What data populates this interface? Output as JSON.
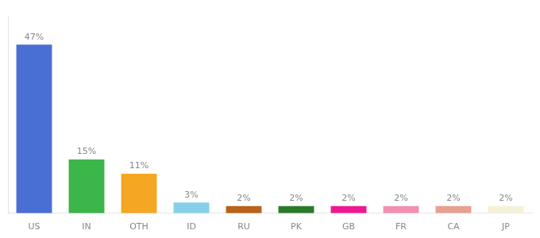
{
  "chart_data": {
    "type": "bar",
    "categories": [
      "US",
      "IN",
      "OTH",
      "ID",
      "RU",
      "PK",
      "GB",
      "FR",
      "CA",
      "JP"
    ],
    "values": [
      47,
      15,
      11,
      3,
      2,
      2,
      2,
      2,
      2,
      2
    ],
    "value_labels": [
      "47%",
      "15%",
      "11%",
      "3%",
      "2%",
      "2%",
      "2%",
      "2%",
      "2%",
      "2%"
    ],
    "colors": [
      "#4a6fd4",
      "#3cb54a",
      "#f5a623",
      "#87ceeb",
      "#b8621a",
      "#2a7a2a",
      "#f01890",
      "#f48fb1",
      "#e8a090",
      "#f5f0d8"
    ],
    "ylim": [
      0,
      55
    ],
    "grid": false,
    "data_labels": true,
    "tick_labels": "x"
  }
}
